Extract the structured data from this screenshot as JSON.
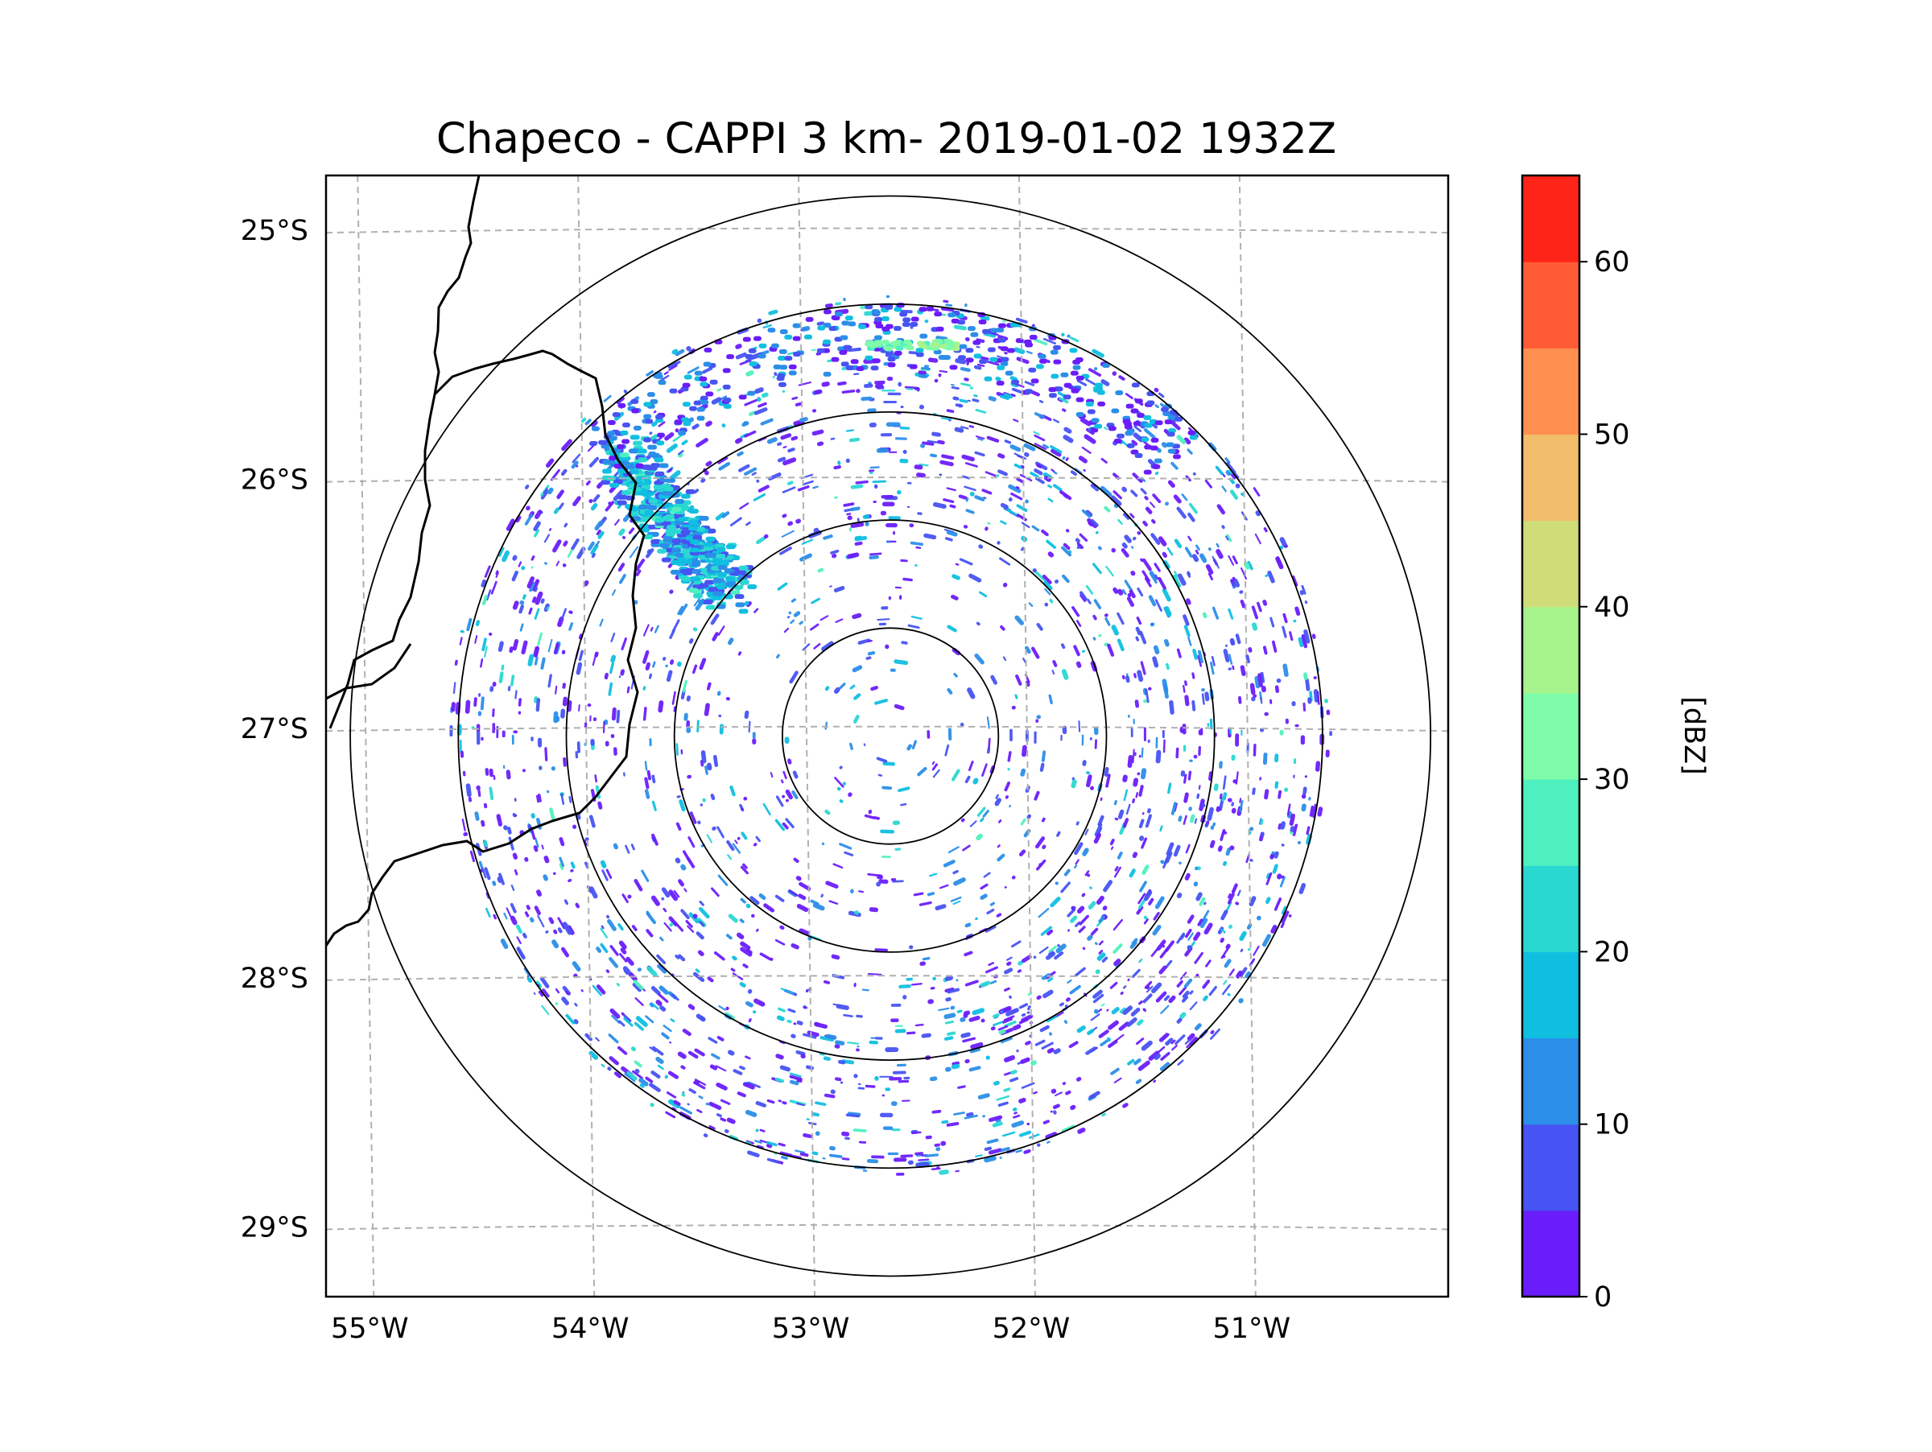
{
  "title": "Chapeco - CAPPI 3 km- 2019-01-02 1932Z",
  "map": {
    "extent": {
      "lon_min": -55.18,
      "lon_max": -50.09,
      "lat_min": -29.28,
      "lat_max": -24.78
    },
    "radar_site": {
      "lon": -52.62,
      "lat": -27.03
    },
    "range_ring_radii_deg": [
      0.5,
      1.0,
      1.5,
      2.0,
      2.5
    ],
    "meridians": [
      -55,
      -54,
      -53,
      -52,
      -51
    ],
    "parallels": [
      -25,
      -26,
      -27,
      -28,
      -29
    ],
    "lat_labels": [
      "25°S",
      "26°S",
      "27°S",
      "28°S",
      "29°S"
    ],
    "lon_labels": [
      "55°W",
      "54°W",
      "53°W",
      "52°W",
      "51°W"
    ]
  },
  "colorbar": {
    "label": "[dBZ]",
    "ticks": [
      "0",
      "10",
      "20",
      "30",
      "40",
      "50",
      "60"
    ],
    "tick_values": [
      0,
      10,
      20,
      30,
      40,
      50,
      60
    ],
    "min": 0,
    "max": 65,
    "step": 5,
    "colors": [
      "#6a1dfa",
      "#4753f2",
      "#2b8ee8",
      "#10bfe0",
      "#2ad8d2",
      "#4ff0c0",
      "#7efcaa",
      "#a7f48c",
      "#cfdd78",
      "#f2bd6a",
      "#ff9050",
      "#ff5c36",
      "#ff2418"
    ]
  }
}
